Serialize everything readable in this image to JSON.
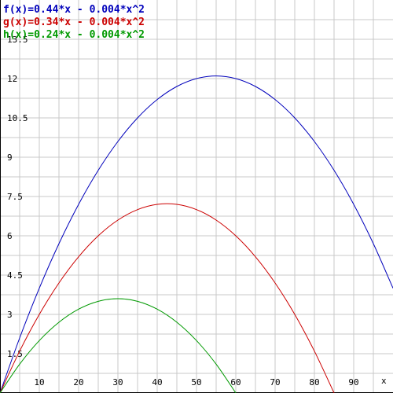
{
  "chart_data": {
    "type": "line",
    "title": "",
    "xlabel": "x",
    "ylabel": "",
    "xlim": [
      0,
      100
    ],
    "ylim": [
      0,
      15
    ],
    "grid": true,
    "legend_position": "top-left",
    "x_ticks": [
      10,
      20,
      30,
      40,
      50,
      60,
      70,
      80,
      90
    ],
    "y_ticks": [
      1.5,
      3,
      4.5,
      6,
      7.5,
      9,
      10.5,
      12,
      13.5
    ],
    "x_tick_labels": [
      "10",
      "20",
      "30",
      "40",
      "50",
      "60",
      "70",
      "80",
      "90"
    ],
    "y_tick_labels": [
      "1.5",
      "3",
      "4.5",
      "6",
      "7.5",
      "9",
      "10.5",
      "12",
      "13.5"
    ],
    "series": [
      {
        "name": "f(x)=0.44*x - 0.004*x^2",
        "color": "#0000bb",
        "x": [
          0,
          5,
          10,
          15,
          20,
          25,
          30,
          35,
          40,
          45,
          50,
          55,
          60,
          65,
          70,
          75,
          80,
          85,
          90,
          95,
          100
        ],
        "y": [
          0,
          2.1,
          4.0,
          5.7,
          7.2,
          8.5,
          9.6,
          10.5,
          11.2,
          11.7,
          12.0,
          12.1,
          12.0,
          11.7,
          11.2,
          10.5,
          9.6,
          8.5,
          7.2,
          5.7,
          4.0
        ]
      },
      {
        "name": "g(x)=0.34*x - 0.004*x^2",
        "color": "#cc0000",
        "x": [
          0,
          5,
          10,
          15,
          20,
          25,
          30,
          35,
          40,
          45,
          50,
          55,
          60,
          65,
          70,
          75,
          80,
          85
        ],
        "y": [
          0,
          1.6,
          3.0,
          4.2,
          5.2,
          6.0,
          6.6,
          7.0,
          7.2,
          7.2,
          7.0,
          6.6,
          6.0,
          5.2,
          4.2,
          3.0,
          1.6,
          0
        ]
      },
      {
        "name": "h(x)=0.24*x - 0.004*x^2",
        "color": "#009900",
        "x": [
          0,
          5,
          10,
          15,
          20,
          25,
          30,
          35,
          40,
          45,
          50,
          55,
          60
        ],
        "y": [
          0,
          1.1,
          2.0,
          2.7,
          3.2,
          3.5,
          3.6,
          3.5,
          3.2,
          2.7,
          2.0,
          1.1,
          0
        ]
      }
    ]
  }
}
